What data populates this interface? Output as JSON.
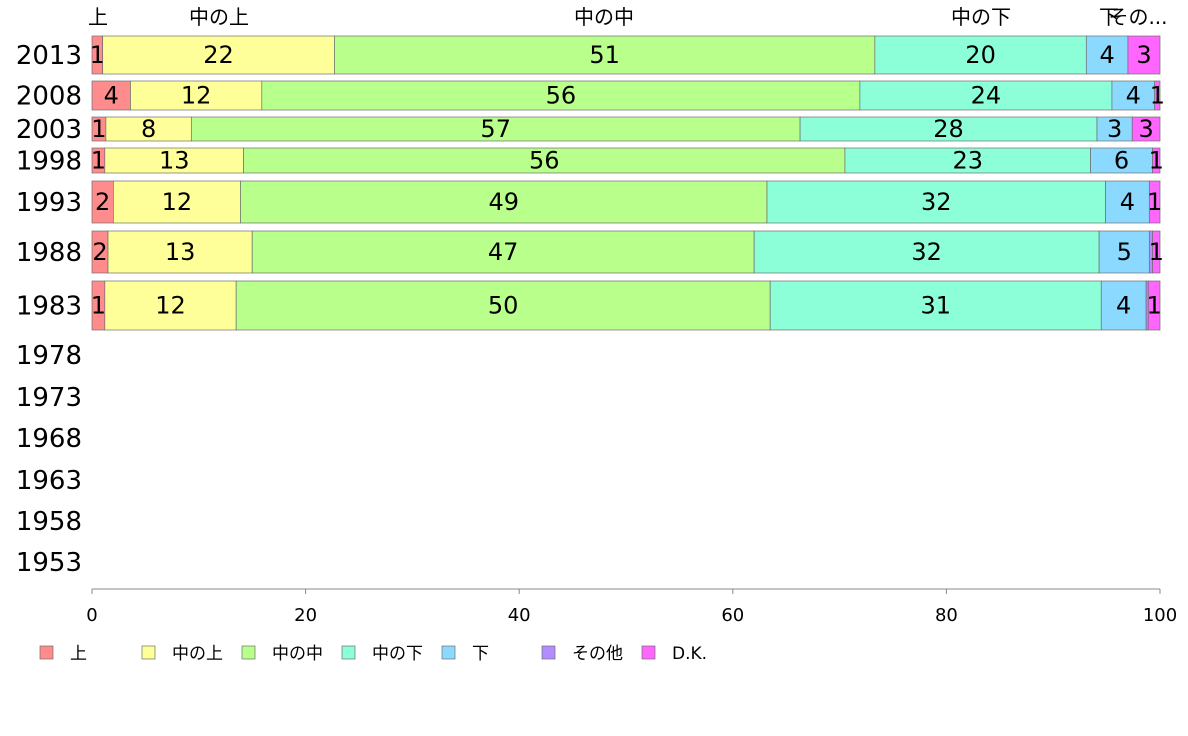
{
  "chart_data": {
    "type": "bar",
    "orientation": "horizontal",
    "stacked": true,
    "categories": [
      "2013",
      "2008",
      "2003",
      "1998",
      "1993",
      "1988",
      "1983",
      "1978",
      "1973",
      "1968",
      "1963",
      "1958",
      "1953"
    ],
    "series": [
      {
        "name": "上",
        "color": "#ff8c8c",
        "values": [
          1.0,
          3.6,
          1.3,
          1.2,
          2.0,
          1.5,
          1.2,
          null,
          null,
          null,
          null,
          null,
          null
        ],
        "labels": [
          "1",
          "4",
          "1",
          "1",
          "2",
          "2",
          "1",
          "",
          "",
          "",
          "",
          "",
          ""
        ]
      },
      {
        "name": "中の上",
        "color": "#ffff99",
        "values": [
          21.7,
          12.3,
          8.0,
          13.0,
          11.9,
          13.5,
          12.3,
          null,
          null,
          null,
          null,
          null,
          null
        ],
        "labels": [
          "22",
          "12",
          "8",
          "13",
          "12",
          "13",
          "12",
          "",
          "",
          "",
          "",
          "",
          ""
        ]
      },
      {
        "name": "中の中",
        "color": "#b8ff8c",
        "values": [
          50.6,
          56.0,
          57.0,
          56.3,
          49.3,
          47.0,
          50.0,
          null,
          null,
          null,
          null,
          null,
          null
        ],
        "labels": [
          "51",
          "56",
          "57",
          "56",
          "49",
          "47",
          "50",
          "",
          "",
          "",
          "",
          "",
          ""
        ]
      },
      {
        "name": "中の下",
        "color": "#8cffd9",
        "values": [
          19.8,
          23.6,
          27.8,
          23.0,
          31.7,
          32.3,
          31.0,
          null,
          null,
          null,
          null,
          null,
          null
        ],
        "labels": [
          "20",
          "24",
          "28",
          "23",
          "32",
          "32",
          "31",
          "",
          "",
          "",
          "",
          "",
          ""
        ]
      },
      {
        "name": "下",
        "color": "#8cd9ff",
        "values": [
          3.9,
          4.0,
          3.3,
          5.8,
          4.1,
          4.7,
          4.2,
          null,
          null,
          null,
          null,
          null,
          null
        ],
        "labels": [
          "4",
          "4",
          "3",
          "6",
          "4",
          "5",
          "4",
          "",
          "",
          "",
          "",
          "",
          ""
        ]
      },
      {
        "name": "その他",
        "color": "#b38cff",
        "values": [
          0,
          0,
          0,
          0,
          0,
          0.3,
          0.2,
          null,
          null,
          null,
          null,
          null,
          null
        ],
        "labels": [
          "",
          "",
          "",
          "",
          "",
          "",
          "",
          "",
          "",
          "",
          "",
          "",
          ""
        ]
      },
      {
        "name": "D.K.",
        "color": "#ff66ff",
        "values": [
          3.0,
          0.5,
          2.6,
          0.7,
          1.0,
          0.7,
          1.1,
          null,
          null,
          null,
          null,
          null,
          null
        ],
        "labels": [
          "3",
          "1",
          "3",
          "1",
          "1",
          "1",
          "1",
          "",
          "",
          "",
          "",
          "",
          ""
        ]
      }
    ],
    "top_labels": [
      "上",
      "中の上",
      "中の中",
      "中の下",
      "下",
      "その..."
    ],
    "xlim": [
      0,
      100
    ],
    "xticks": [
      "0",
      "20",
      "40",
      "60",
      "80",
      "100"
    ],
    "grid": false,
    "legend": "bottom-left",
    "title": "",
    "xlabel": "",
    "ylabel": ""
  }
}
